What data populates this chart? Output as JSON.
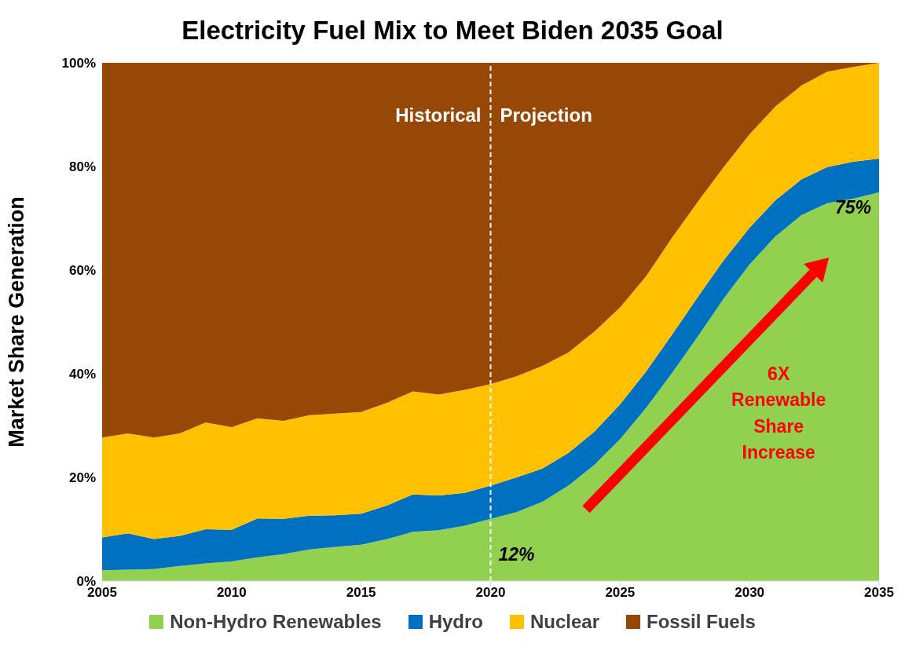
{
  "chart_data": {
    "type": "area",
    "title": "Electricity Fuel Mix to Meet Biden 2035 Goal",
    "ylabel": "Market Share Generation",
    "stacked": true,
    "legend": "bottom",
    "x": [
      2005,
      2006,
      2007,
      2008,
      2009,
      2010,
      2011,
      2012,
      2013,
      2014,
      2015,
      2016,
      2017,
      2018,
      2019,
      2020,
      2021,
      2022,
      2023,
      2024,
      2025,
      2026,
      2027,
      2028,
      2029,
      2030,
      2031,
      2032,
      2033,
      2034,
      2035
    ],
    "series": [
      {
        "name": "Non-Hydro Renewables",
        "color": "#92d050",
        "values": [
          2.1,
          2.2,
          2.3,
          2.9,
          3.4,
          3.8,
          4.6,
          5.2,
          6.1,
          6.6,
          7.0,
          8.1,
          9.5,
          9.8,
          10.7,
          12,
          13.3,
          15.3,
          18.4,
          22.4,
          27.4,
          33.4,
          40.1,
          47.2,
          54.5,
          61.1,
          66.5,
          70.6,
          72.9,
          73.8,
          75
        ]
      },
      {
        "name": "Hydro",
        "color": "#0070c0",
        "values": [
          6.3,
          7.0,
          5.8,
          5.8,
          6.6,
          6.1,
          7.5,
          6.8,
          6.5,
          6.1,
          6.0,
          6.5,
          7.2,
          6.7,
          6.3,
          6.4,
          6.7,
          6.4,
          6.3,
          6.4,
          6.7,
          7.0,
          7.4,
          7.6,
          7.4,
          7.1,
          7.0,
          6.9,
          7.0,
          7.1,
          6.5
        ]
      },
      {
        "name": "Nuclear",
        "color": "#ffc000",
        "values": [
          19.3,
          19.3,
          19.6,
          19.8,
          20.6,
          19.8,
          19.3,
          18.9,
          19.4,
          19.6,
          19.6,
          19.8,
          19.9,
          19.5,
          19.9,
          19.6,
          19.5,
          19.8,
          19.4,
          19.3,
          18.7,
          18.4,
          18.7,
          18.4,
          18.0,
          18.0,
          18.1,
          18.1,
          18.4,
          18.3,
          18.5
        ]
      },
      {
        "name": "Fossil Fuels",
        "color": "#974706",
        "values": [
          72.3,
          71.5,
          72.3,
          71.5,
          69.4,
          70.3,
          68.6,
          69.1,
          68.0,
          67.7,
          67.4,
          65.6,
          63.4,
          64.0,
          63.1,
          62.0,
          60.5,
          58.5,
          55.9,
          51.9,
          47.2,
          41.2,
          33.8,
          26.8,
          20.1,
          13.8,
          8.4,
          4.4,
          1.7,
          0.8,
          0
        ]
      }
    ],
    "xlim": [
      2005,
      2035
    ],
    "xticks": [
      2005,
      2010,
      2015,
      2020,
      2025,
      2030,
      2035
    ],
    "ylim": [
      0,
      100
    ],
    "yticks": [
      {
        "value": 0,
        "label": "0%"
      },
      {
        "value": 20,
        "label": "20%"
      },
      {
        "value": 40,
        "label": "40%"
      },
      {
        "value": 60,
        "label": "60%"
      },
      {
        "value": 80,
        "label": "80%"
      },
      {
        "value": 100,
        "label": "100%"
      }
    ],
    "ref_lines": [
      {
        "axis": "x",
        "value": 2020,
        "color": "#ffffff",
        "line_style": "dashed"
      }
    ],
    "annotations": [
      "Historical",
      "Projection",
      "6X Renewable Share Increase",
      {
        "text": "12%",
        "x": 2020,
        "y": 12
      },
      {
        "text": "75%",
        "x": 2035,
        "y": 75
      }
    ]
  }
}
